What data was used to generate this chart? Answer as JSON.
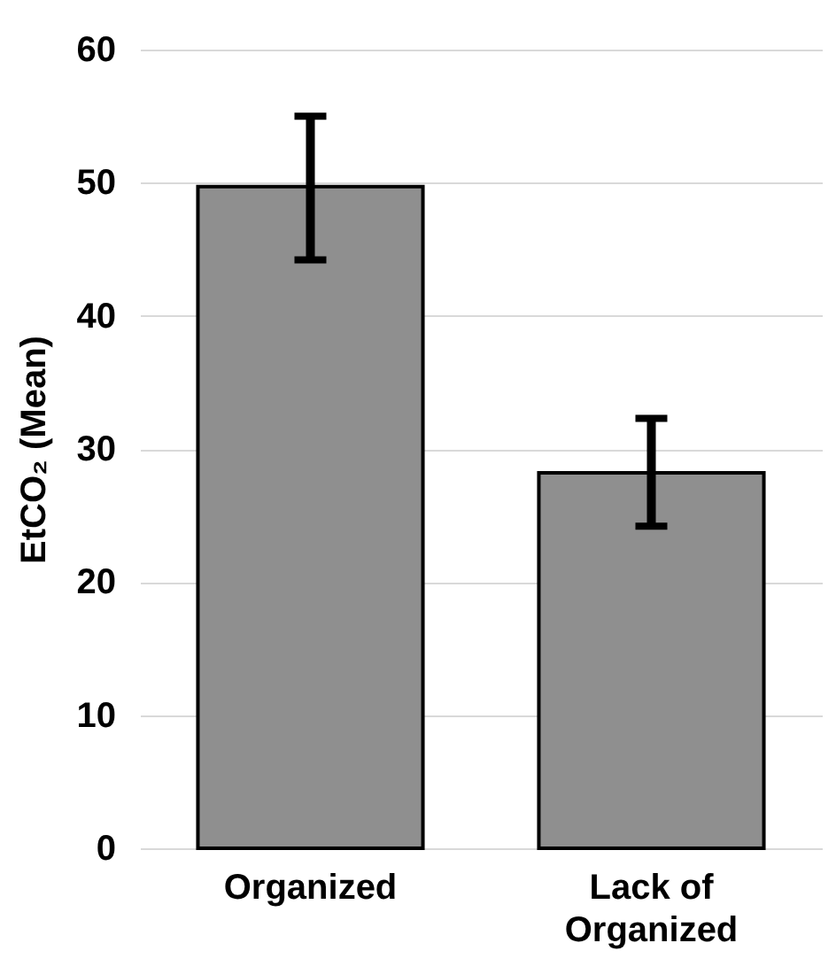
{
  "chart_data": {
    "type": "bar",
    "ylabel": "EtCO₂ (Mean)",
    "categories": [
      "Organized",
      "Lack of Organized"
    ],
    "values": [
      49.7,
      28.2
    ],
    "errors": [
      [
        44.2,
        55.0
      ],
      [
        24.2,
        32.3
      ]
    ],
    "color": "#8f8f8f",
    "ylim": [
      0,
      60
    ],
    "yticks": [
      0,
      10,
      20,
      30,
      40,
      50,
      60
    ],
    "grid": "y"
  }
}
